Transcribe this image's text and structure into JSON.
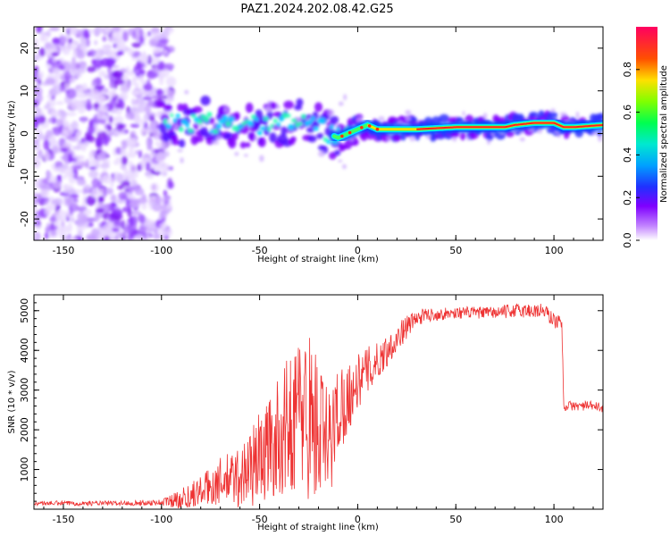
{
  "title": "PAZ1.2024.202.08.42.G25",
  "chart_data": [
    {
      "type": "heatmap",
      "xlabel": "Height of straight line (km)",
      "ylabel": "Frequency (Hz)",
      "xlim": [
        -165,
        125
      ],
      "ylim": [
        -25,
        25
      ],
      "xticks": [
        -150,
        -100,
        -50,
        0,
        50,
        100
      ],
      "yticks": [
        -20,
        -10,
        0,
        10,
        20
      ],
      "colorbar": {
        "label": "Normalized spectral amplitude",
        "ticks": [
          0.0,
          0.2,
          0.4,
          0.6,
          0.8
        ],
        "range": [
          0,
          1
        ],
        "colormap": [
          "#ffffff",
          "#c080ff",
          "#7f00ff",
          "#0040ff",
          "#00d0ff",
          "#00ff80",
          "#80ff00",
          "#ffd000",
          "#ff4000",
          "#ff0050"
        ]
      },
      "frequency_track_hz": {
        "x": [
          -100,
          -90,
          -80,
          -70,
          -60,
          -50,
          -40,
          -30,
          -25,
          -20,
          -15,
          -10,
          -5,
          0,
          5,
          10,
          20,
          30,
          50,
          75,
          80,
          90,
          100,
          105,
          110,
          125
        ],
        "y": [
          3,
          2,
          3,
          2,
          2,
          2,
          2,
          3,
          3,
          2,
          0,
          -1,
          0,
          1,
          2,
          1,
          1,
          1,
          1.5,
          1.5,
          2,
          2.5,
          2.5,
          1.5,
          1.5,
          2
        ]
      }
    },
    {
      "type": "line",
      "xlabel": "Height of straight line (km)",
      "ylabel": "SNR (10 * v/v)",
      "xlim": [
        -165,
        125
      ],
      "ylim": [
        0,
        5400
      ],
      "xticks": [
        -150,
        -100,
        -50,
        0,
        50,
        100
      ],
      "yticks": [
        1000,
        2000,
        3000,
        4000,
        5000
      ],
      "color": "#ee3333",
      "series": [
        {
          "x": [
            -165,
            -140,
            -120,
            -100,
            -90,
            -80,
            -70,
            -60,
            -50,
            -40,
            -30,
            -25,
            -20,
            -15,
            -10,
            -5,
            0,
            5,
            10,
            15,
            20,
            25,
            30,
            35,
            40,
            50,
            60,
            70,
            80,
            90,
            95,
            100,
            104,
            105,
            106,
            110,
            115,
            120,
            125
          ],
          "values": [
            150,
            150,
            150,
            170,
            250,
            450,
            700,
            800,
            1300,
            1800,
            2500,
            2400,
            2000,
            1500,
            2500,
            2800,
            3200,
            3500,
            3700,
            4000,
            4300,
            4600,
            4800,
            4900,
            4900,
            4950,
            4950,
            4950,
            5000,
            5000,
            5000,
            4750,
            4700,
            2600,
            2600,
            2600,
            2600,
            2600,
            2550
          ],
          "noise": [
            60,
            60,
            60,
            80,
            300,
            400,
            600,
            800,
            1200,
            1500,
            2000,
            2200,
            2000,
            1500,
            1200,
            900,
            700,
            600,
            500,
            400,
            350,
            300,
            200,
            180,
            150,
            150,
            150,
            150,
            180,
            200,
            200,
            200,
            150,
            150,
            120,
            120,
            120,
            120,
            120
          ]
        }
      ]
    }
  ]
}
